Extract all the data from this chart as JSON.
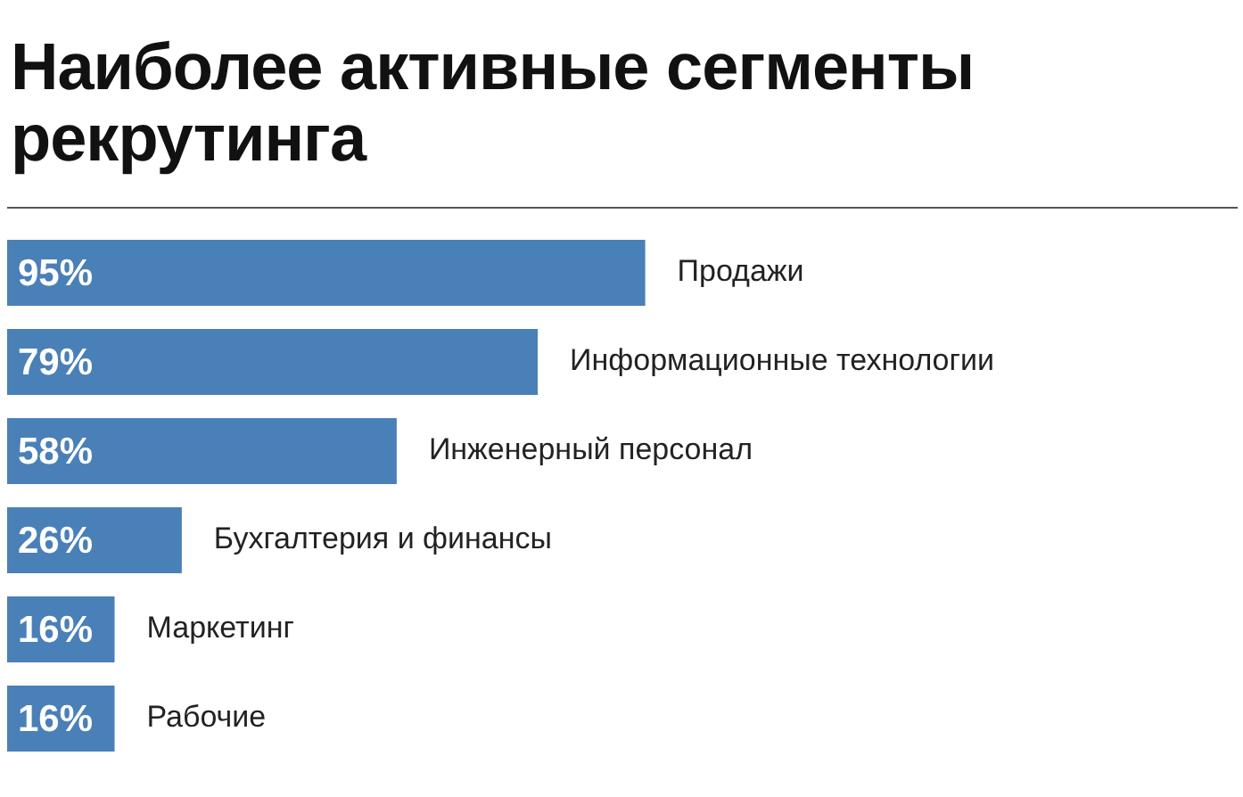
{
  "chart_data": {
    "type": "bar",
    "orientation": "horizontal",
    "title": "Наиболее активные сегменты рекрутинга",
    "categories": [
      "Продажи",
      "Информационные технологии",
      "Инженерный персонал",
      "Бухгалтерия и финансы",
      "Маркетинг",
      "Рабочие"
    ],
    "values": [
      95,
      79,
      58,
      26,
      16,
      16
    ],
    "value_labels": [
      "95%",
      "79%",
      "58%",
      "26%",
      "16%",
      "16%"
    ],
    "color": "#4a80b8",
    "xlim": [
      0,
      184
    ]
  }
}
